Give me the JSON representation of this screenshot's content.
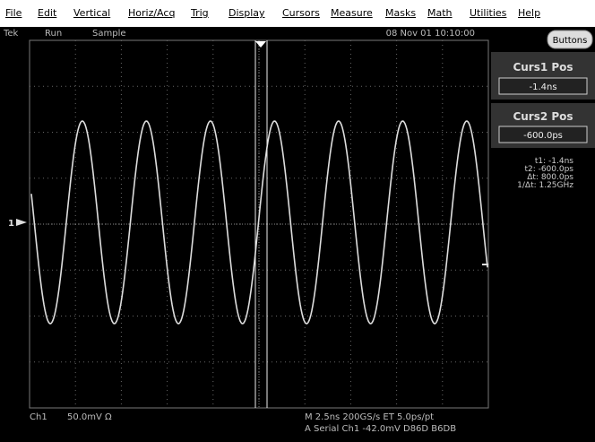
{
  "menu": [
    "File",
    "Edit",
    "Vertical",
    "Horiz/Acq",
    "Trig",
    "Display",
    "Cursors",
    "Measure",
    "Masks",
    "Math",
    "Utilities",
    "Help"
  ],
  "status": {
    "brand": "Tek",
    "state": "Run",
    "mode": "Sample",
    "datetime": "08 Nov 01 10:10:00"
  },
  "side_panel": {
    "button": "Buttons",
    "curs1": {
      "title": "Curs1 Pos",
      "value": "-1.4ns"
    },
    "curs2": {
      "title": "Curs2 Pos",
      "value": "-600.0ps"
    },
    "readouts": [
      "t1: -1.4ns",
      "t2: -600.0ps",
      "Δt:  800.0ps",
      "1/Δt:  1.25GHz"
    ]
  },
  "channel_marker": "1",
  "bottom": {
    "channel": "Ch1",
    "scale": "50.0mV  Ω",
    "timebase": "M 2.5ns 200GS/s ET 5.0ps/pt",
    "trigger": "A  Serial    Ch1      -42.0mV  D86D B6DB"
  }
}
